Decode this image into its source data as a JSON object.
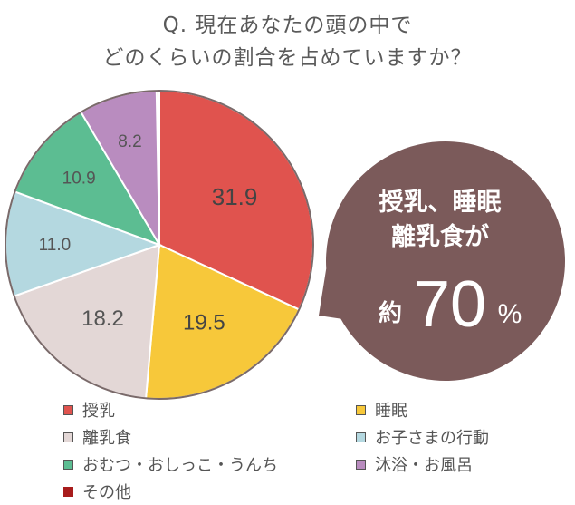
{
  "title": {
    "line1": "Q. 現在あなたの頭の中で",
    "line2": "どのくらいの割合を占めていますか？"
  },
  "chart_data": {
    "type": "pie",
    "slices": [
      {
        "label": "授乳",
        "value": 31.9,
        "color": "#e0534e",
        "display": "31.9"
      },
      {
        "label": "睡眠",
        "value": 19.5,
        "color": "#f7c83a",
        "display": "19.5"
      },
      {
        "label": "離乳食",
        "value": 18.2,
        "color": "#e3d7d6",
        "display": "18.2"
      },
      {
        "label": "お子さまの行動",
        "value": 11.0,
        "color": "#b4d8e0",
        "display": "11.0"
      },
      {
        "label": "おむつ・おしっこ・うんち",
        "value": 10.9,
        "color": "#5cbd92",
        "display": "10.9"
      },
      {
        "label": "沐浴・お風呂",
        "value": 8.2,
        "color": "#b98cbf",
        "display": "8.2"
      },
      {
        "label": "その他",
        "value": 0.3,
        "color": "#a81c1c",
        "display": ""
      }
    ],
    "legend_placement": "bottom"
  },
  "callout": {
    "line1": "授乳、睡眠",
    "line2": "離乳食が",
    "prefix": "約",
    "number": "70",
    "unit": "%",
    "color": "#7b5a5a"
  }
}
